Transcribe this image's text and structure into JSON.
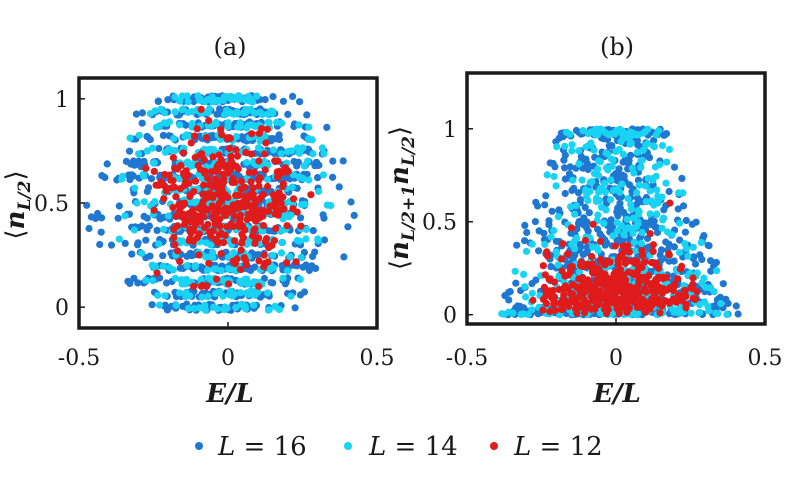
{
  "chart_data": [
    {
      "type": "scatter",
      "panel_label": "(a)",
      "xlabel": "E/L",
      "ylabel": "⟨n_{L/2}⟩",
      "xlim": [
        -0.5,
        0.5
      ],
      "ylim": [
        -0.1,
        1.1
      ],
      "xticks": [
        -0.5,
        0,
        0.5
      ],
      "xtick_labels": [
        "-0.5",
        "0",
        "0.5"
      ],
      "yticks": [
        0,
        0.5,
        1
      ],
      "ytick_labels": [
        "0",
        "0.5",
        "1"
      ],
      "series": [
        {
          "name": "L = 16",
          "color": "#1f77d0",
          "x_range": [
            -0.48,
            0.45
          ],
          "y_range": [
            0.0,
            1.0
          ],
          "count": 900
        },
        {
          "name": "L = 14",
          "color": "#19d3f2",
          "x_range": [
            -0.4,
            0.38
          ],
          "y_range": [
            0.0,
            1.0
          ],
          "count": 500
        },
        {
          "name": "L = 12",
          "color": "#e01b1b",
          "x_range": [
            -0.3,
            0.28
          ],
          "y_range": [
            0.1,
            0.95
          ],
          "count": 350
        }
      ]
    },
    {
      "type": "scatter",
      "panel_label": "(b)",
      "xlabel": "E/L",
      "ylabel": "⟨n_{L/2+1} n_{L/2}⟩",
      "xlim": [
        -0.5,
        0.5
      ],
      "ylim": [
        -0.05,
        1.3
      ],
      "xticks": [
        -0.5,
        0,
        0.5
      ],
      "xtick_labels": [
        "-0.5",
        "0",
        "0.5"
      ],
      "yticks": [
        0,
        0.5,
        1
      ],
      "ytick_labels": [
        "0",
        "0.5",
        "1"
      ],
      "series": [
        {
          "name": "L = 16",
          "color": "#1f77d0",
          "x_range": [
            -0.42,
            0.42
          ],
          "y_range": [
            0.0,
            1.0
          ],
          "count": 700
        },
        {
          "name": "L = 14",
          "color": "#19d3f2",
          "x_range": [
            -0.4,
            0.4
          ],
          "y_range": [
            0.0,
            1.0
          ],
          "count": 400
        },
        {
          "name": "L = 12",
          "color": "#e01b1b",
          "x_range": [
            -0.3,
            0.3
          ],
          "y_range": [
            0.0,
            0.6
          ],
          "count": 350
        }
      ]
    }
  ],
  "legend": [
    {
      "symbol": "L",
      "eq": " = 16",
      "color": "#1f77d0"
    },
    {
      "symbol": "L",
      "eq": " = 14",
      "color": "#19d3f2"
    },
    {
      "symbol": "L",
      "eq": " = 12",
      "color": "#e01b1b"
    }
  ]
}
